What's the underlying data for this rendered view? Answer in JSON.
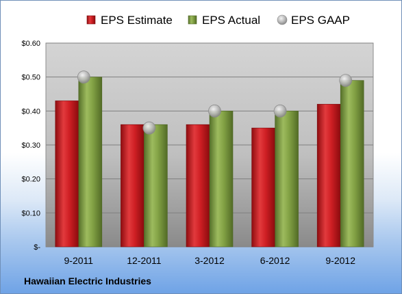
{
  "chart_data": {
    "type": "bar",
    "categories": [
      "9-2011",
      "12-2011",
      "3-2012",
      "6-2012",
      "9-2012"
    ],
    "series": [
      {
        "name": "EPS Estimate",
        "values": [
          0.43,
          0.36,
          0.36,
          0.35,
          0.42
        ],
        "color": "#c8171c",
        "kind": "bar"
      },
      {
        "name": "EPS Actual",
        "values": [
          0.5,
          0.36,
          0.4,
          0.4,
          0.49
        ],
        "color": "#7c9c3a",
        "kind": "bar"
      },
      {
        "name": "EPS GAAP",
        "values": [
          0.5,
          0.35,
          0.4,
          0.4,
          0.49
        ],
        "color": "#b8b8b8",
        "kind": "marker"
      }
    ],
    "yticks": [
      "$-",
      "$0.10",
      "$0.20",
      "$0.30",
      "$0.40",
      "$0.50",
      "$0.60"
    ],
    "ylim": [
      0,
      0.6
    ],
    "grid": true,
    "legend_position": "top"
  },
  "footer": "Hawaiian Electric Industries"
}
